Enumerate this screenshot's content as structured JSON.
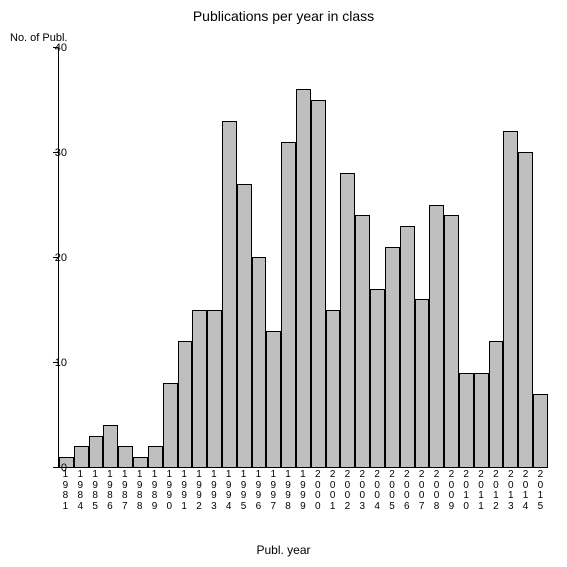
{
  "chart": {
    "type": "bar",
    "title": "Publications per year in class",
    "title_fontsize": 14,
    "ylabel": "No. of Publ.",
    "xlabel": "Publ. year",
    "label_fontsize": 12,
    "tick_fontsize": 11,
    "categories": [
      "1981",
      "1984",
      "1985",
      "1986",
      "1987",
      "1988",
      "1989",
      "1990",
      "1991",
      "1992",
      "1993",
      "1994",
      "1995",
      "1996",
      "1997",
      "1998",
      "1999",
      "2000",
      "2001",
      "2002",
      "2003",
      "2004",
      "2005",
      "2006",
      "2007",
      "2008",
      "2009",
      "2010",
      "2011",
      "2012",
      "2013",
      "2014",
      "2015"
    ],
    "values": [
      1,
      2,
      3,
      4,
      2,
      1,
      2,
      8,
      12,
      15,
      15,
      33,
      27,
      20,
      13,
      31,
      36,
      35,
      15,
      28,
      24,
      17,
      21,
      23,
      16,
      25,
      24,
      9,
      9,
      12,
      32,
      30,
      7
    ],
    "bar_color": "#bfbfbf",
    "bar_border_color": "#000000",
    "axis_color": "#000000",
    "background_color": "#ffffff",
    "ylim": [
      0,
      40
    ],
    "ytick_step": 10,
    "yticks": [
      0,
      10,
      20,
      30,
      40
    ]
  }
}
